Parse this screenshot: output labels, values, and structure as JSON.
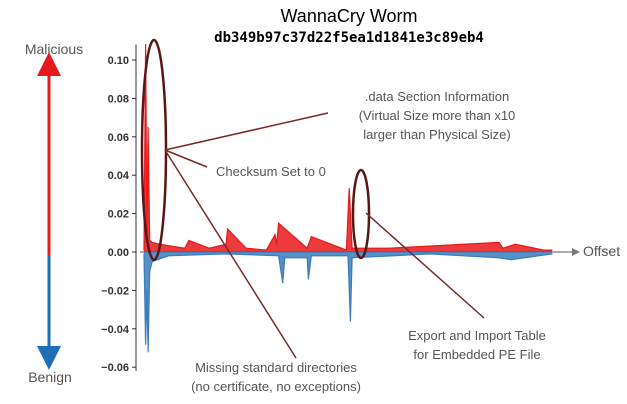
{
  "chart_data": {
    "type": "area",
    "title": "WannaCry Worm",
    "subtitle": "db349b97c37d22f5ea1d1841e3c89eb4",
    "xlabel": "Offset",
    "ylabel_top": "Malicious",
    "ylabel_bottom": "Benign",
    "ylim": [
      -0.062,
      0.108
    ],
    "yticks": [
      0.1,
      0.08,
      0.06,
      0.04,
      0.02,
      0.0,
      -0.02,
      -0.04,
      -0.06
    ],
    "ytick_labels": [
      "0.10",
      "0.08",
      "0.06",
      "0.04",
      "0.02",
      "0.00",
      "−0.02",
      "−0.04",
      "−0.06"
    ],
    "grid": false,
    "series": [
      {
        "color": "#e8191b",
        "x": [
          0,
          4,
          7,
          10,
          14,
          20,
          40,
          100,
          110,
          160,
          201,
          205,
          250,
          300,
          321,
          325,
          330,
          400,
          410,
          496,
          503,
          510,
          600,
          870,
          880,
          910,
          980,
          1000
        ],
        "values": [
          0.001,
          0.108,
          0.01,
          0.065,
          0.006,
          0.005,
          0.004,
          0.002,
          0.006,
          0.002,
          0.004,
          0.012,
          0.002,
          0.001,
          0.009,
          0.004,
          0.015,
          0.002,
          0.008,
          0.001,
          0.033,
          0.002,
          0.002,
          0.005,
          0.002,
          0.004,
          0.001,
          0.001
        ]
      },
      {
        "color": "#3a7bbd",
        "x": [
          0,
          4,
          7,
          10,
          14,
          20,
          60,
          200,
          330,
          340,
          345,
          400,
          403,
          410,
          500,
          506,
          510,
          700,
          870,
          900,
          1000
        ],
        "values": [
          -0.001,
          -0.048,
          -0.02,
          -0.052,
          -0.01,
          -0.005,
          -0.002,
          -0.001,
          -0.002,
          -0.016,
          -0.003,
          -0.003,
          -0.014,
          -0.002,
          -0.002,
          -0.036,
          -0.003,
          -0.001,
          -0.003,
          -0.004,
          -0.001
        ]
      }
    ],
    "annotations": [
      ".data Section Information",
      "(Virtual Size more than x10",
      "larger than Physical Size)",
      "Checksum Set to 0",
      "Export and Import Table",
      "for Embedded PE File",
      "Missing standard directories",
      "(no certificate, no exceptions)"
    ]
  }
}
